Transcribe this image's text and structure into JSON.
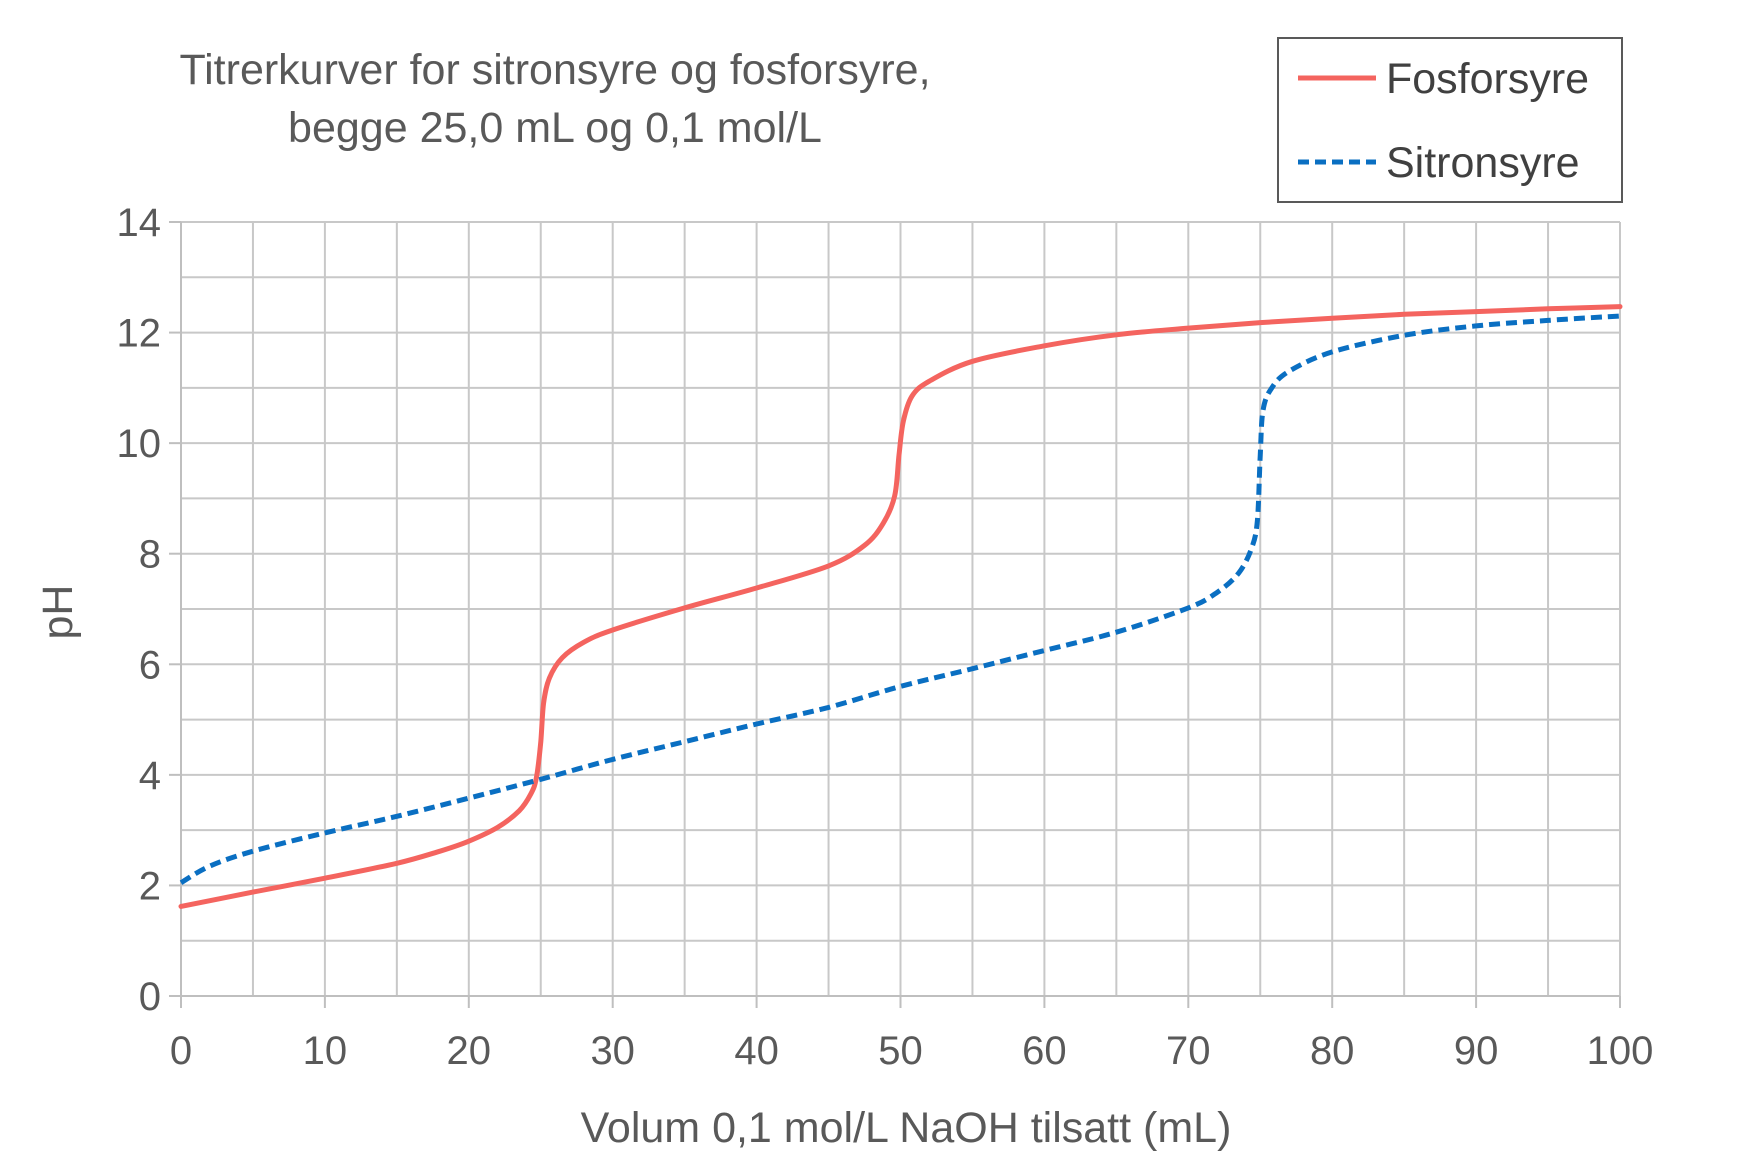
{
  "chart_data": {
    "type": "line",
    "title_lines": [
      "Titrerkurver for sitronsyre og fosforsyre,",
      "begge 25,0 mL og 0,1 mol/L"
    ],
    "xlabel": "Volum 0,1 mol/L NaOH tilsatt (mL)",
    "ylabel": "pH",
    "xlim": [
      0,
      100
    ],
    "ylim": [
      0,
      14
    ],
    "xticks": [
      0,
      10,
      20,
      30,
      40,
      50,
      60,
      70,
      80,
      90,
      100
    ],
    "yticks": [
      0,
      2,
      4,
      6,
      8,
      10,
      12,
      14
    ],
    "grid": true,
    "grid_x_step": 5,
    "grid_y_step": 1,
    "legend_position": "top-right",
    "series": [
      {
        "name": "Fosforsyre",
        "color": "#f4645f",
        "style": "solid",
        "points": [
          [
            0,
            1.62
          ],
          [
            5,
            1.88
          ],
          [
            10,
            2.13
          ],
          [
            15,
            2.4
          ],
          [
            18,
            2.62
          ],
          [
            20,
            2.8
          ],
          [
            22,
            3.05
          ],
          [
            23.5,
            3.35
          ],
          [
            24.3,
            3.65
          ],
          [
            24.7,
            3.95
          ],
          [
            25,
            4.6
          ],
          [
            25.2,
            5.3
          ],
          [
            25.6,
            5.75
          ],
          [
            26.5,
            6.12
          ],
          [
            28,
            6.4
          ],
          [
            30,
            6.62
          ],
          [
            35,
            7.02
          ],
          [
            40,
            7.38
          ],
          [
            45,
            7.78
          ],
          [
            47.5,
            8.15
          ],
          [
            48.8,
            8.55
          ],
          [
            49.6,
            9.05
          ],
          [
            49.9,
            9.8
          ],
          [
            50.2,
            10.4
          ],
          [
            50.8,
            10.85
          ],
          [
            52,
            11.12
          ],
          [
            55,
            11.48
          ],
          [
            60,
            11.76
          ],
          [
            65,
            11.96
          ],
          [
            70,
            12.08
          ],
          [
            75,
            12.18
          ],
          [
            80,
            12.26
          ],
          [
            85,
            12.33
          ],
          [
            90,
            12.38
          ],
          [
            95,
            12.43
          ],
          [
            100,
            12.47
          ]
        ]
      },
      {
        "name": "Sitronsyre",
        "color": "#0a6fc2",
        "style": "dashed",
        "points": [
          [
            0,
            2.05
          ],
          [
            2,
            2.35
          ],
          [
            5,
            2.62
          ],
          [
            10,
            2.95
          ],
          [
            15,
            3.25
          ],
          [
            20,
            3.58
          ],
          [
            25,
            3.92
          ],
          [
            30,
            4.28
          ],
          [
            35,
            4.6
          ],
          [
            40,
            4.92
          ],
          [
            45,
            5.22
          ],
          [
            50,
            5.6
          ],
          [
            55,
            5.92
          ],
          [
            60,
            6.25
          ],
          [
            65,
            6.58
          ],
          [
            70,
            7.02
          ],
          [
            72,
            7.3
          ],
          [
            73.5,
            7.65
          ],
          [
            74.4,
            8.1
          ],
          [
            74.8,
            8.6
          ],
          [
            75,
            9.8
          ],
          [
            75.2,
            10.6
          ],
          [
            75.8,
            11.0
          ],
          [
            77,
            11.3
          ],
          [
            80,
            11.65
          ],
          [
            85,
            11.95
          ],
          [
            90,
            12.12
          ],
          [
            95,
            12.22
          ],
          [
            100,
            12.3
          ]
        ]
      }
    ]
  }
}
